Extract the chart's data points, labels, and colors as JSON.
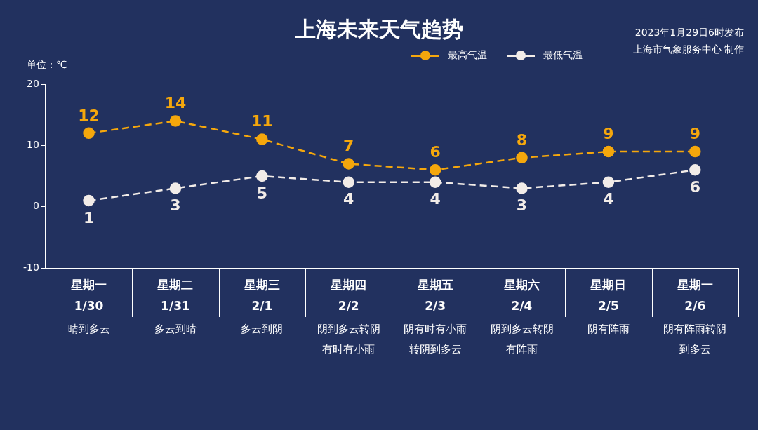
{
  "chart_data": {
    "type": "line",
    "title": "上海未来天气趋势",
    "ylabel": "单位：℃",
    "annotations": [
      "2023年1月29日6时发布",
      "上海市气象服务中心 制作"
    ],
    "categories": [
      "星期一\n1/30\n晴到多云",
      "星期二\n1/31\n多云到晴",
      "星期三\n2/1\n多云到阴",
      "星期四\n2/2\n阴到多云转阴有时有小雨",
      "星期五\n2/3\n阴有时有小雨转阴到多云",
      "星期六\n2/4\n阴到多云转阴有阵雨",
      "星期日\n2/5\n阴有阵雨",
      "星期一\n2/6\n阴有阵雨转阴到多云"
    ],
    "series": [
      {
        "name": "最高气温",
        "color": "#f5a70c",
        "values": [
          12,
          14,
          11,
          7,
          6,
          8,
          9,
          9
        ]
      },
      {
        "name": "最低气温",
        "color": "#f2ece8",
        "values": [
          1,
          3,
          5,
          4,
          4,
          3,
          4,
          6
        ]
      }
    ],
    "ylim": [
      -10,
      20
    ],
    "yticks": [
      -10,
      0,
      10,
      20
    ],
    "legend": "top right",
    "marker": "circle",
    "line_style": "dashed",
    "data_labels": true
  }
}
